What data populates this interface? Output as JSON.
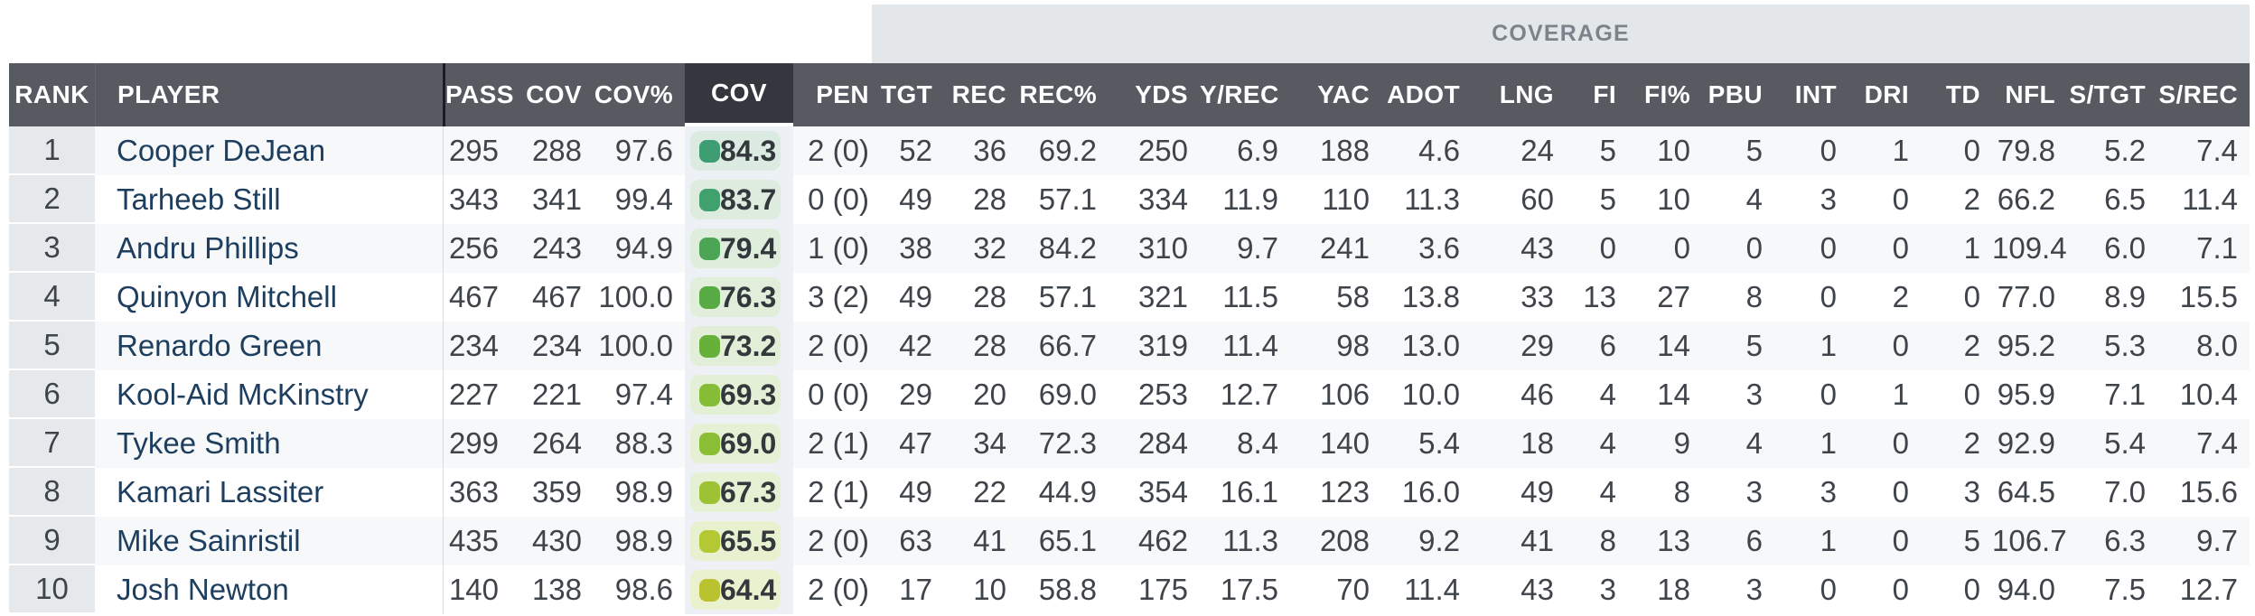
{
  "coverage_band": {
    "label": "COVERAGE"
  },
  "table": {
    "columns": [
      {
        "key": "rank",
        "label": "RANK",
        "align": "center"
      },
      {
        "key": "player",
        "label": "PLAYER",
        "align": "left"
      },
      {
        "key": "pass",
        "label": "PASS",
        "align": "right"
      },
      {
        "key": "cov",
        "label": "COV",
        "align": "right"
      },
      {
        "key": "cov_pct",
        "label": "COV%",
        "align": "right"
      },
      {
        "key": "grade",
        "label": "COV",
        "align": "center",
        "sorted": true
      },
      {
        "key": "pen",
        "label": "PEN",
        "align": "right"
      },
      {
        "key": "tgt",
        "label": "TGT",
        "align": "right"
      },
      {
        "key": "rec",
        "label": "REC",
        "align": "right"
      },
      {
        "key": "rec_pct",
        "label": "REC%",
        "align": "right"
      },
      {
        "key": "yds",
        "label": "YDS",
        "align": "right"
      },
      {
        "key": "y_rec",
        "label": "Y/REC",
        "align": "right"
      },
      {
        "key": "yac",
        "label": "YAC",
        "align": "right"
      },
      {
        "key": "adot",
        "label": "ADOT",
        "align": "right"
      },
      {
        "key": "lng",
        "label": "LNG",
        "align": "right"
      },
      {
        "key": "fi",
        "label": "FI",
        "align": "right"
      },
      {
        "key": "fi_pct",
        "label": "FI%",
        "align": "right"
      },
      {
        "key": "pbu",
        "label": "PBU",
        "align": "right"
      },
      {
        "key": "int",
        "label": "INT",
        "align": "right"
      },
      {
        "key": "dri",
        "label": "DRI",
        "align": "right"
      },
      {
        "key": "td",
        "label": "TD",
        "align": "right"
      },
      {
        "key": "nfl",
        "label": "NFL",
        "align": "right"
      },
      {
        "key": "s_tgt",
        "label": "S/TGT",
        "align": "right"
      },
      {
        "key": "s_rec",
        "label": "S/REC",
        "align": "right"
      }
    ],
    "rows": [
      {
        "rank": "1",
        "player": "Cooper DeJean",
        "pass": "295",
        "cov": "288",
        "cov_pct": "97.6",
        "grade": "84.3",
        "grade_color": "#3e9d72",
        "grade_bg": "#dcebe1",
        "pen": "2 (0)",
        "tgt": "52",
        "rec": "36",
        "rec_pct": "69.2",
        "yds": "250",
        "y_rec": "6.9",
        "yac": "188",
        "adot": "4.6",
        "lng": "24",
        "fi": "5",
        "fi_pct": "10",
        "pbu": "5",
        "int": "0",
        "dri": "1",
        "td": "0",
        "nfl": "79.8",
        "s_tgt": "5.2",
        "s_rec": "7.4"
      },
      {
        "rank": "2",
        "player": "Tarheeb Still",
        "pass": "343",
        "cov": "341",
        "cov_pct": "99.4",
        "grade": "83.7",
        "grade_color": "#40a06e",
        "grade_bg": "#ddecdf",
        "pen": "0 (0)",
        "tgt": "49",
        "rec": "28",
        "rec_pct": "57.1",
        "yds": "334",
        "y_rec": "11.9",
        "yac": "110",
        "adot": "11.3",
        "lng": "60",
        "fi": "5",
        "fi_pct": "10",
        "pbu": "4",
        "int": "3",
        "dri": "0",
        "td": "2",
        "nfl": "66.2",
        "s_tgt": "6.5",
        "s_rec": "11.4"
      },
      {
        "rank": "3",
        "player": "Andru Phillips",
        "pass": "256",
        "cov": "243",
        "cov_pct": "94.9",
        "grade": "79.4",
        "grade_color": "#4ca455",
        "grade_bg": "#dfeddc",
        "pen": "1 (0)",
        "tgt": "38",
        "rec": "32",
        "rec_pct": "84.2",
        "yds": "310",
        "y_rec": "9.7",
        "yac": "241",
        "adot": "3.6",
        "lng": "43",
        "fi": "0",
        "fi_pct": "0",
        "pbu": "0",
        "int": "0",
        "dri": "0",
        "td": "1",
        "nfl": "109.4",
        "s_tgt": "6.0",
        "s_rec": "7.1"
      },
      {
        "rank": "4",
        "player": "Quinyon Mitchell",
        "pass": "467",
        "cov": "467",
        "cov_pct": "100.0",
        "grade": "76.3",
        "grade_color": "#58aa45",
        "grade_bg": "#e0eeda",
        "pen": "3 (2)",
        "tgt": "49",
        "rec": "28",
        "rec_pct": "57.1",
        "yds": "321",
        "y_rec": "11.5",
        "yac": "58",
        "adot": "13.8",
        "lng": "33",
        "fi": "13",
        "fi_pct": "27",
        "pbu": "8",
        "int": "0",
        "dri": "2",
        "td": "0",
        "nfl": "77.0",
        "s_tgt": "8.9",
        "s_rec": "15.5"
      },
      {
        "rank": "5",
        "player": "Renardo Green",
        "pass": "234",
        "cov": "234",
        "cov_pct": "100.0",
        "grade": "73.2",
        "grade_color": "#67b13a",
        "grade_bg": "#e2eed8",
        "pen": "2 (0)",
        "tgt": "42",
        "rec": "28",
        "rec_pct": "66.7",
        "yds": "319",
        "y_rec": "11.4",
        "yac": "98",
        "adot": "13.0",
        "lng": "29",
        "fi": "6",
        "fi_pct": "14",
        "pbu": "5",
        "int": "1",
        "dri": "0",
        "td": "2",
        "nfl": "95.2",
        "s_tgt": "5.3",
        "s_rec": "8.0"
      },
      {
        "rank": "6",
        "player": "Kool-Aid McKinstry",
        "pass": "227",
        "cov": "221",
        "cov_pct": "97.4",
        "grade": "69.3",
        "grade_color": "#86bd36",
        "grade_bg": "#e4f0d5",
        "pen": "0 (0)",
        "tgt": "29",
        "rec": "20",
        "rec_pct": "69.0",
        "yds": "253",
        "y_rec": "12.7",
        "yac": "106",
        "adot": "10.0",
        "lng": "46",
        "fi": "4",
        "fi_pct": "14",
        "pbu": "3",
        "int": "0",
        "dri": "1",
        "td": "0",
        "nfl": "95.9",
        "s_tgt": "7.1",
        "s_rec": "10.4"
      },
      {
        "rank": "7",
        "player": "Tykee Smith",
        "pass": "299",
        "cov": "264",
        "cov_pct": "88.3",
        "grade": "69.0",
        "grade_color": "#8abe34",
        "grade_bg": "#e5f0d4",
        "pen": "2 (1)",
        "tgt": "47",
        "rec": "34",
        "rec_pct": "72.3",
        "yds": "284",
        "y_rec": "8.4",
        "yac": "140",
        "adot": "5.4",
        "lng": "18",
        "fi": "4",
        "fi_pct": "9",
        "pbu": "4",
        "int": "1",
        "dri": "0",
        "td": "2",
        "nfl": "92.9",
        "s_tgt": "5.4",
        "s_rec": "7.4"
      },
      {
        "rank": "8",
        "player": "Kamari Lassiter",
        "pass": "363",
        "cov": "359",
        "cov_pct": "98.9",
        "grade": "67.3",
        "grade_color": "#9dc334",
        "grade_bg": "#e6f0d2",
        "pen": "2 (1)",
        "tgt": "49",
        "rec": "22",
        "rec_pct": "44.9",
        "yds": "354",
        "y_rec": "16.1",
        "yac": "123",
        "adot": "16.0",
        "lng": "49",
        "fi": "4",
        "fi_pct": "8",
        "pbu": "3",
        "int": "3",
        "dri": "0",
        "td": "3",
        "nfl": "64.5",
        "s_tgt": "7.0",
        "s_rec": "15.6"
      },
      {
        "rank": "9",
        "player": "Mike Sainristil",
        "pass": "435",
        "cov": "430",
        "cov_pct": "98.9",
        "grade": "65.5",
        "grade_color": "#b3c832",
        "grade_bg": "#e8f1cf",
        "pen": "2 (0)",
        "tgt": "63",
        "rec": "41",
        "rec_pct": "65.1",
        "yds": "462",
        "y_rec": "11.3",
        "yac": "208",
        "adot": "9.2",
        "lng": "41",
        "fi": "8",
        "fi_pct": "13",
        "pbu": "6",
        "int": "1",
        "dri": "0",
        "td": "5",
        "nfl": "106.7",
        "s_tgt": "6.3",
        "s_rec": "9.7"
      },
      {
        "rank": "10",
        "player": "Josh Newton",
        "pass": "140",
        "cov": "138",
        "cov_pct": "98.6",
        "grade": "64.4",
        "grade_color": "#bac22f",
        "grade_bg": "#e9f1ce",
        "pen": "2 (0)",
        "tgt": "17",
        "rec": "10",
        "rec_pct": "58.8",
        "yds": "175",
        "y_rec": "17.5",
        "yac": "70",
        "adot": "11.4",
        "lng": "43",
        "fi": "3",
        "fi_pct": "18",
        "pbu": "3",
        "int": "0",
        "dri": "0",
        "td": "0",
        "nfl": "94.0",
        "s_tgt": "7.5",
        "s_rec": "12.7"
      }
    ]
  },
  "colors": {
    "header_bg": "#575b61",
    "header_sorted_bg": "#34383e",
    "band_bg": "#e4e7ea",
    "band_text": "#7c838b",
    "row_stripe": "#f6f8f9",
    "rank_cell_bg": "#e6e9ec",
    "sorted_column_bg": "#edf1f6",
    "player_link": "#1d3e5e",
    "body_text": "#3f444a",
    "divider_dark": "#1a1d21",
    "divider_light": "#d8dbde"
  }
}
